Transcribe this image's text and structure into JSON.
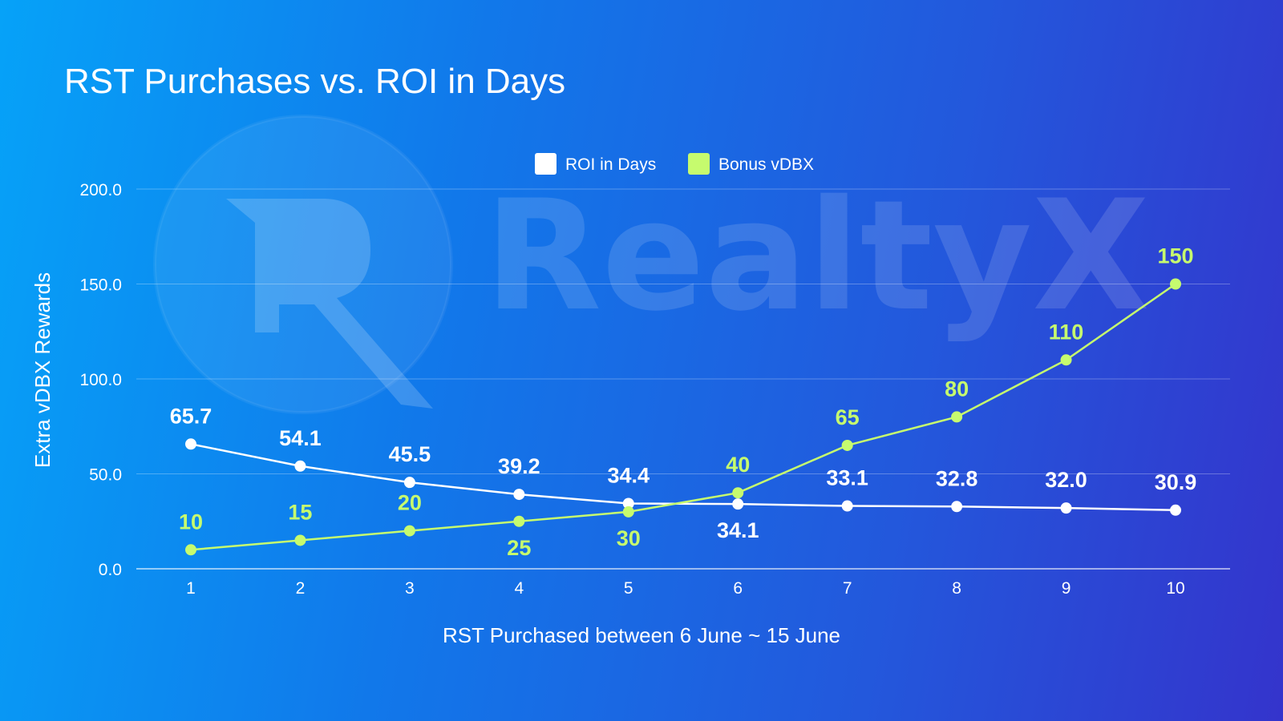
{
  "chart_data": {
    "type": "line",
    "title": "RST Purchases vs. ROI in Days",
    "xlabel": "RST Purchased between 6 June ~ 15 June",
    "ylabel": "Extra vDBX Rewards",
    "x": [
      1,
      2,
      3,
      4,
      5,
      6,
      7,
      8,
      9,
      10
    ],
    "ylim": [
      0,
      200
    ],
    "yticks": [
      "0.0",
      "50.0",
      "100.0",
      "150.0",
      "200.0"
    ],
    "grid": true,
    "legend_position": "top-center",
    "series": [
      {
        "name": "ROI in Days",
        "color": "#ffffff",
        "values": [
          65.7,
          54.1,
          45.5,
          39.2,
          34.4,
          34.1,
          33.1,
          32.8,
          32.0,
          30.9
        ],
        "labels": [
          "65.7",
          "54.1",
          "45.5",
          "39.2",
          "34.4",
          "34.1",
          "33.1",
          "32.8",
          "32.0",
          "30.9"
        ]
      },
      {
        "name": "Bonus vDBX",
        "color": "#c6fb6e",
        "values": [
          10,
          15,
          20,
          25,
          30,
          40,
          65,
          80,
          110,
          150
        ],
        "labels": [
          "10",
          "15",
          "20",
          "25",
          "30",
          "40",
          "65",
          "80",
          "110",
          "150"
        ]
      }
    ]
  },
  "watermark": {
    "text": "RealtyX",
    "letter": "R"
  }
}
